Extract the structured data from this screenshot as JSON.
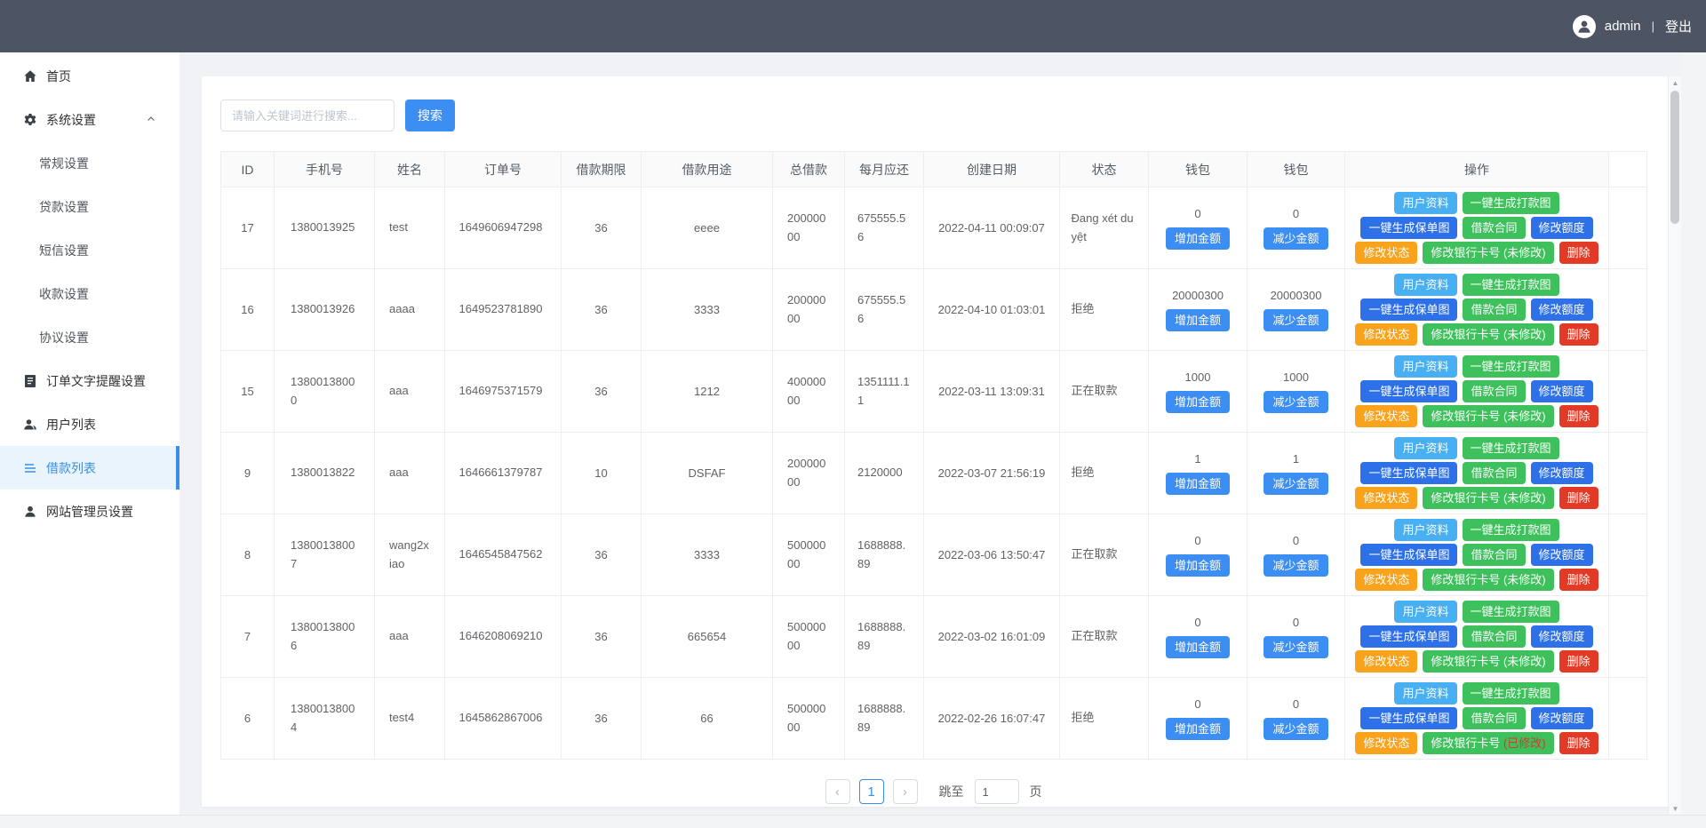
{
  "topbar": {
    "username": "admin",
    "separator": "|",
    "logout_label": "登出"
  },
  "sidebar": {
    "items": [
      {
        "label": "首页",
        "icon": "home-icon",
        "type": "main"
      },
      {
        "label": "系统设置",
        "icon": "gear-icon",
        "type": "main",
        "expanded": true
      },
      {
        "label": "常规设置",
        "type": "sub"
      },
      {
        "label": "贷款设置",
        "type": "sub"
      },
      {
        "label": "短信设置",
        "type": "sub"
      },
      {
        "label": "收款设置",
        "type": "sub"
      },
      {
        "label": "协议设置",
        "type": "sub"
      },
      {
        "label": "订单文字提醒设置",
        "icon": "document-icon",
        "type": "main"
      },
      {
        "label": "用户列表",
        "icon": "users-icon",
        "type": "main"
      },
      {
        "label": "借款列表",
        "icon": "list-icon",
        "type": "main",
        "active": true
      },
      {
        "label": "网站管理员设置",
        "icon": "person-icon",
        "type": "main"
      }
    ]
  },
  "search": {
    "placeholder": "请输入关键词进行搜索...",
    "button_label": "搜索"
  },
  "table": {
    "headers": [
      "ID",
      "手机号",
      "姓名",
      "订单号",
      "借款期限",
      "借款用途",
      "总借款",
      "每月应还",
      "创建日期",
      "状态",
      "钱包",
      "钱包",
      "操作"
    ],
    "wallet_buttons": {
      "add": "增加金额",
      "reduce": "减少金额"
    },
    "action_buttons": {
      "profile": "用户资料",
      "payment_image": "一键生成打款图",
      "policy_image": "一键生成保单图",
      "contract": "借款合同",
      "quota": "修改额度",
      "status": "修改状态",
      "bank_prefix": "修改银行卡号",
      "delete": "删除"
    },
    "rows": [
      {
        "id": "17",
        "phone": "1380013925",
        "name": "test",
        "order": "1649606947298",
        "term": "36",
        "purpose": "eeee",
        "total": "20000000",
        "monthly": "675555.56",
        "created": "2022-04-11 00:09:07",
        "status": "Đang xét duyệt",
        "wallet1": "0",
        "wallet2": "0",
        "bank_suffix": "(未修改)",
        "bank_suffix_red": false
      },
      {
        "id": "16",
        "phone": "1380013926",
        "name": "aaaa",
        "order": "1649523781890",
        "term": "36",
        "purpose": "3333",
        "total": "20000000",
        "monthly": "675555.56",
        "created": "2022-04-10 01:03:01",
        "status": "拒绝",
        "wallet1": "20000300",
        "wallet2": "20000300",
        "bank_suffix": "(未修改)",
        "bank_suffix_red": false
      },
      {
        "id": "15",
        "phone": "13800138000",
        "name": "aaa",
        "order": "1646975371579",
        "term": "36",
        "purpose": "1212",
        "total": "40000000",
        "monthly": "1351111.11",
        "created": "2022-03-11 13:09:31",
        "status": "正在取款",
        "wallet1": "1000",
        "wallet2": "1000",
        "bank_suffix": "(未修改)",
        "bank_suffix_red": false
      },
      {
        "id": "9",
        "phone": "1380013822",
        "name": "aaa",
        "order": "1646661379787",
        "term": "10",
        "purpose": "DSFAF",
        "total": "20000000",
        "monthly": "2120000",
        "created": "2022-03-07 21:56:19",
        "status": "拒绝",
        "wallet1": "1",
        "wallet2": "1",
        "bank_suffix": "(未修改)",
        "bank_suffix_red": false
      },
      {
        "id": "8",
        "phone": "13800138007",
        "name": "wang2xiao",
        "order": "1646545847562",
        "term": "36",
        "purpose": "3333",
        "total": "50000000",
        "monthly": "1688888.89",
        "created": "2022-03-06 13:50:47",
        "status": "正在取款",
        "wallet1": "0",
        "wallet2": "0",
        "bank_suffix": "(未修改)",
        "bank_suffix_red": false
      },
      {
        "id": "7",
        "phone": "13800138006",
        "name": "aaa",
        "order": "1646208069210",
        "term": "36",
        "purpose": "665654",
        "total": "50000000",
        "monthly": "1688888.89",
        "created": "2022-03-02 16:01:09",
        "status": "正在取款",
        "wallet1": "0",
        "wallet2": "0",
        "bank_suffix": "(未修改)",
        "bank_suffix_red": false
      },
      {
        "id": "6",
        "phone": "13800138004",
        "name": "test4",
        "order": "1645862867006",
        "term": "36",
        "purpose": "66",
        "total": "50000000",
        "monthly": "1688888.89",
        "created": "2022-02-26 16:07:47",
        "status": "拒绝",
        "wallet1": "0",
        "wallet2": "0",
        "bank_suffix": "(已修改)",
        "bank_suffix_red": true
      }
    ]
  },
  "pagination": {
    "prev": "‹",
    "page": "1",
    "next": "›",
    "jump_label": "跳至",
    "jump_value": "1",
    "page_unit": "页"
  },
  "colors": {
    "navbar": "#4d5464",
    "accent_blue": "#3a8ee6",
    "primary_button": "#3d8ef2",
    "sky_button": "#47aff2",
    "green_button": "#3ec05c",
    "royal_button": "#2d70e8",
    "orange_button": "#f9a21b",
    "red_button": "#e23a26",
    "page_bg": "#f0f2f5",
    "active_item_bg": "#e9f4fd",
    "bank_modified_text": "#d43a2f"
  }
}
